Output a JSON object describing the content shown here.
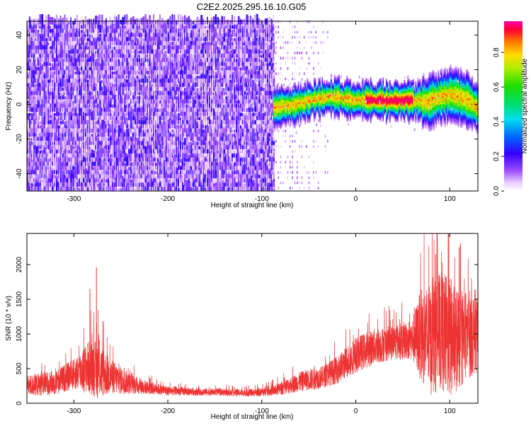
{
  "title": "C2E2.2025.295.16.10.G05",
  "chart_data": [
    {
      "type": "heatmap",
      "xlabel": "Height of straight line (km)",
      "ylabel": "Frequency (Hz)",
      "xlim": [
        -350,
        130
      ],
      "ylim": [
        -50,
        48
      ],
      "xticks": [
        -300,
        -200,
        -100,
        0,
        100
      ],
      "yticks": [
        -40,
        -20,
        0,
        20,
        40
      ],
      "colorbar": {
        "label": "Normalized spectral amplitude",
        "range": [
          0,
          0.98
        ],
        "ticks": [
          0,
          0.2,
          0.4,
          0.6,
          0.8
        ],
        "tick_labels": [
          "0.0",
          "0.2",
          "0.4",
          "0.6",
          "0.8"
        ]
      },
      "noise_region": {
        "x_range": [
          -350,
          -88
        ],
        "sparse_x_range": [
          -88,
          -28
        ]
      },
      "signal_ridge": {
        "x": [
          -88,
          -70,
          -50,
          -30,
          -10,
          0,
          20,
          40,
          60,
          75,
          90,
          100,
          110,
          120,
          130
        ],
        "freq": [
          -2,
          -1,
          2,
          4,
          3,
          2,
          2,
          2,
          2,
          1,
          4,
          5,
          4,
          2,
          -3
        ],
        "peak_amplitude": 0.98
      }
    },
    {
      "type": "line",
      "xlabel": "Height of straight line (km)",
      "ylabel": "SNR (10 * v/v)",
      "xlim": [
        -350,
        130
      ],
      "ylim": [
        0,
        2450
      ],
      "xticks": [
        -300,
        -200,
        -100,
        0,
        100
      ],
      "yticks": [
        0,
        500,
        1000,
        1500,
        2000
      ],
      "series": [
        {
          "color": "#ee3333",
          "envelope_x": [
            -350,
            -320,
            -300,
            -285,
            -275,
            -260,
            -240,
            -220,
            -200,
            -180,
            -150,
            -120,
            -100,
            -85,
            -70,
            -55,
            -45,
            -35,
            -20,
            0,
            20,
            40,
            60,
            70,
            80,
            90,
            100,
            110,
            120,
            130
          ],
          "envelope_mean": [
            250,
            300,
            420,
            520,
            480,
            380,
            280,
            220,
            180,
            170,
            160,
            150,
            160,
            190,
            260,
            330,
            350,
            380,
            480,
            700,
            820,
            880,
            920,
            1000,
            900,
            1050,
            950,
            900,
            1000,
            1050
          ],
          "envelope_spread": [
            150,
            180,
            220,
            380,
            420,
            250,
            150,
            90,
            70,
            60,
            50,
            50,
            60,
            80,
            120,
            150,
            160,
            160,
            200,
            260,
            260,
            250,
            300,
            700,
            800,
            850,
            900,
            700,
            650,
            600
          ],
          "notable_peaks": [
            {
              "x": -276,
              "y": 1960
            },
            {
              "x": -283,
              "y": 1650
            },
            {
              "x": 99,
              "y": 2440
            },
            {
              "x": 85,
              "y": 2150
            },
            {
              "x": 110,
              "y": 2250
            }
          ]
        }
      ]
    }
  ]
}
